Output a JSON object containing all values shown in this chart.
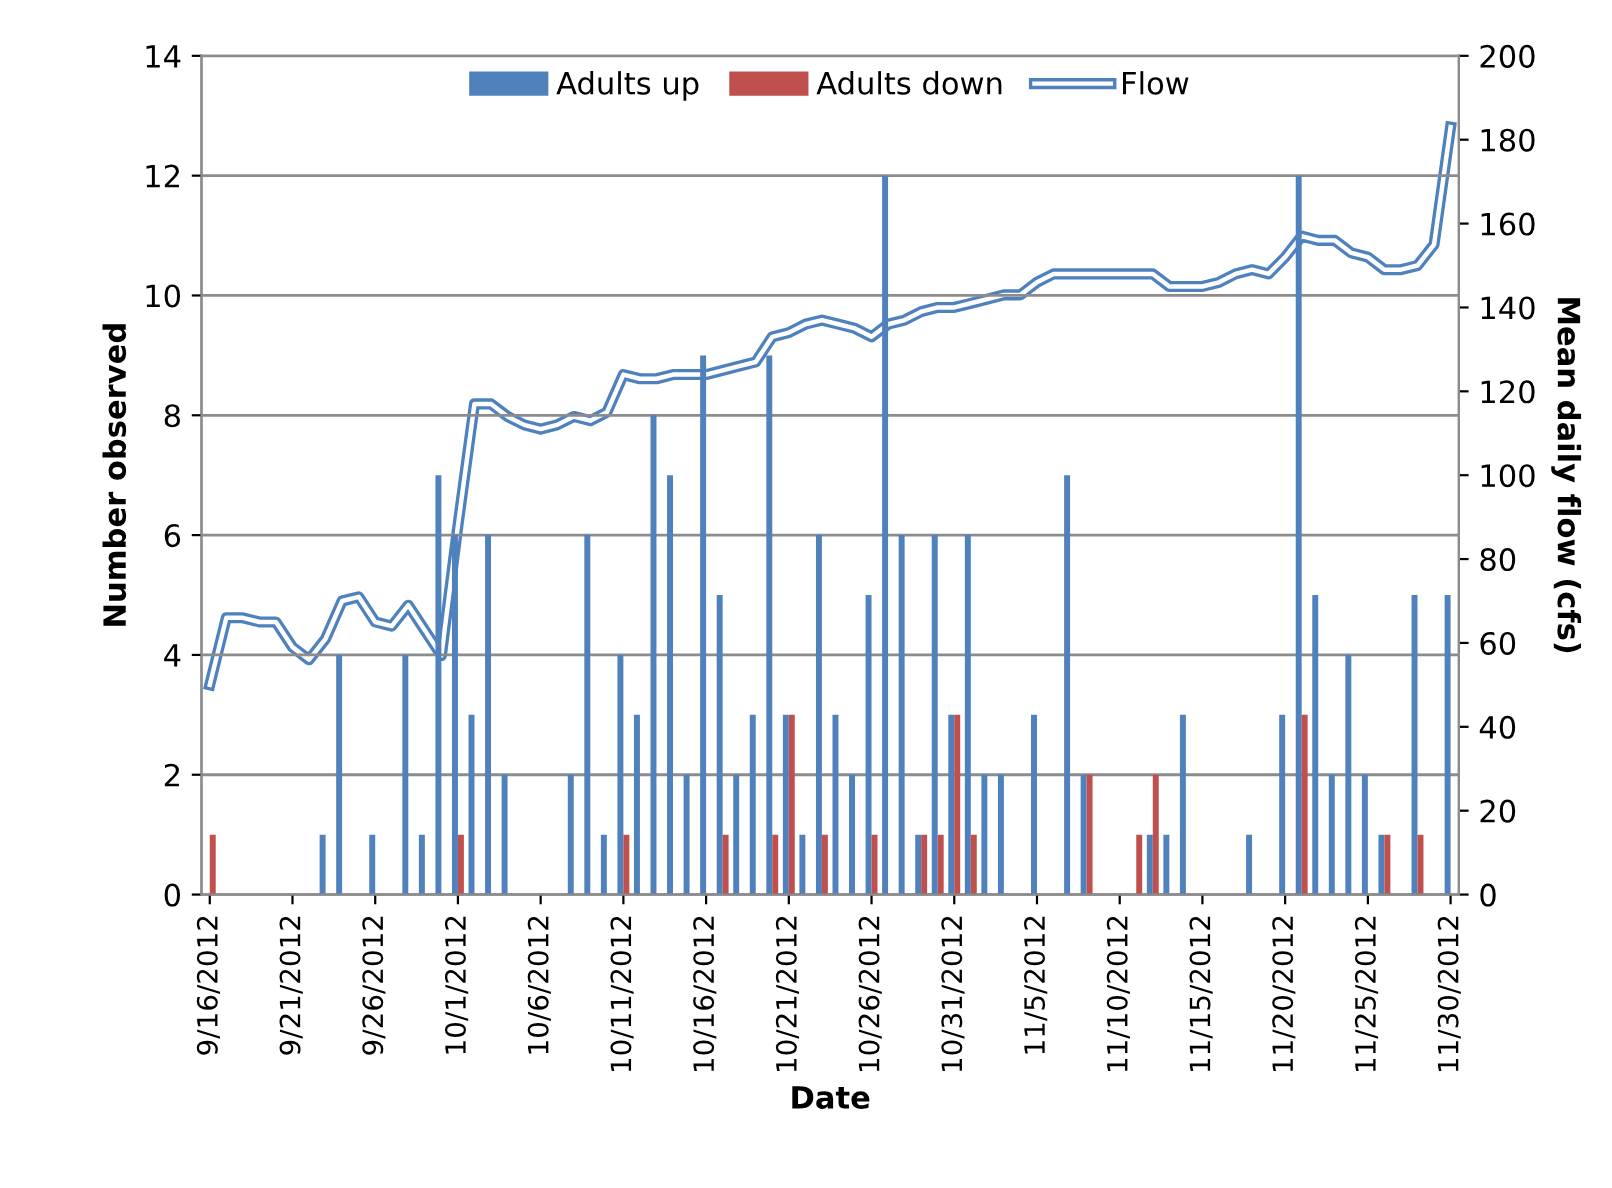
{
  "chart_data": {
    "type": "bar",
    "xlabel": "Date",
    "ylabel": "Number observed",
    "y2label": "Mean daily flow (cfs)",
    "categories": [
      "9/16/2012",
      null,
      null,
      null,
      null,
      "9/21/2012",
      null,
      null,
      null,
      null,
      "9/26/2012",
      null,
      null,
      null,
      null,
      "10/1/2012",
      null,
      null,
      null,
      null,
      "10/6/2012",
      null,
      null,
      null,
      null,
      "10/11/2012",
      null,
      null,
      null,
      null,
      "10/16/2012",
      null,
      null,
      null,
      null,
      "10/21/2012",
      null,
      null,
      null,
      null,
      "10/26/2012",
      null,
      null,
      null,
      null,
      "10/31/2012",
      null,
      null,
      null,
      null,
      "11/5/2012",
      null,
      null,
      null,
      null,
      "11/10/2012",
      null,
      null,
      null,
      null,
      "11/15/2012",
      null,
      null,
      null,
      null,
      "11/20/2012",
      null,
      null,
      null,
      null,
      "11/25/2012",
      null,
      null,
      null,
      null,
      "11/30/2012"
    ],
    "series": [
      {
        "name": "Adults up",
        "color": "#4f81bd",
        "values": [
          0,
          0,
          0,
          0,
          0,
          0,
          0,
          1,
          4,
          0,
          1,
          0,
          4,
          1,
          7,
          6,
          3,
          6,
          2,
          0,
          0,
          0,
          2,
          6,
          1,
          4,
          3,
          8,
          7,
          2,
          9,
          5,
          2,
          3,
          9,
          3,
          1,
          6,
          3,
          2,
          5,
          12,
          6,
          1,
          6,
          3,
          6,
          2,
          2,
          0,
          3,
          0,
          7,
          2,
          0,
          0,
          0,
          1,
          1,
          3,
          0,
          0,
          0,
          1,
          0,
          3,
          12,
          5,
          2,
          4,
          2,
          1,
          0,
          5,
          0,
          5
        ]
      },
      {
        "name": "Adults down",
        "color": "#c0504d",
        "values": [
          1,
          0,
          0,
          0,
          0,
          0,
          0,
          0,
          0,
          0,
          0,
          0,
          0,
          0,
          0,
          1,
          0,
          0,
          0,
          0,
          0,
          0,
          0,
          0,
          0,
          1,
          0,
          0,
          0,
          0,
          0,
          1,
          0,
          0,
          1,
          3,
          0,
          1,
          0,
          0,
          1,
          0,
          0,
          1,
          1,
          3,
          1,
          0,
          0,
          0,
          0,
          0,
          0,
          2,
          0,
          0,
          1,
          2,
          0,
          0,
          0,
          0,
          0,
          0,
          0,
          0,
          3,
          0,
          0,
          0,
          0,
          1,
          0,
          1,
          0,
          0
        ]
      },
      {
        "name": "Flow",
        "type": "line",
        "axis": "y2",
        "color": "#4f81bd",
        "line_style": "solid",
        "values": [
          50,
          66,
          66,
          65,
          65,
          59,
          56,
          61,
          70,
          71,
          65,
          64,
          69,
          63,
          57,
          88,
          117,
          117,
          114,
          112,
          111,
          112,
          114,
          113,
          115,
          124,
          123,
          123,
          124,
          124,
          124,
          125,
          126,
          127,
          133,
          134,
          136,
          137,
          136,
          135,
          133,
          136,
          137,
          139,
          140,
          140,
          141,
          142,
          143,
          143,
          146,
          148,
          148,
          148,
          148,
          148,
          148,
          148,
          145,
          145,
          145,
          146,
          148,
          149,
          148,
          152,
          157,
          156,
          156,
          153,
          152,
          149,
          149,
          150,
          155,
          183
        ]
      }
    ],
    "ylim": [
      0,
      14
    ],
    "yticks": [
      0,
      2,
      4,
      6,
      8,
      10,
      12,
      14
    ],
    "y2lim": [
      0,
      200
    ],
    "y2ticks": [
      0,
      20,
      40,
      60,
      80,
      100,
      120,
      140,
      160,
      180,
      200
    ],
    "grid": "y",
    "legend": "top"
  }
}
